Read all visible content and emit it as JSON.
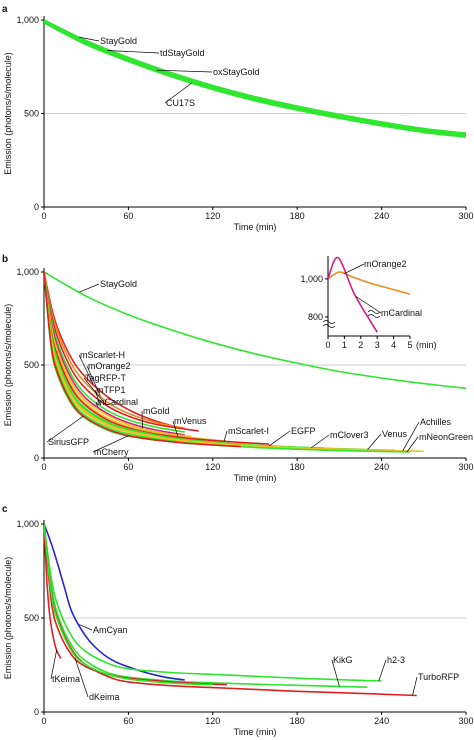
{
  "chart_data": [
    {
      "panel": "a",
      "type": "line",
      "xlabel": "Time (min)",
      "ylabel": "Emission (photons/s/molecule)",
      "xlim": [
        0,
        300
      ],
      "ylim": [
        0,
        1000
      ],
      "xticks": [
        0,
        60,
        120,
        180,
        240,
        300
      ],
      "yticks": [
        0,
        500,
        1000
      ],
      "ytick_labels": [
        "0",
        "500",
        "1,000"
      ],
      "gridlines_y": [
        500
      ],
      "series": [
        {
          "name": "StayGold",
          "color": "#2ee62e",
          "x": [
            0,
            30,
            60,
            90,
            120,
            150,
            180,
            210,
            240,
            270,
            300
          ],
          "y": [
            1000,
            890,
            800,
            720,
            650,
            590,
            540,
            495,
            455,
            420,
            395
          ]
        },
        {
          "name": "tdStayGold",
          "color": "#2ee62e",
          "x": [
            0,
            30,
            60,
            90,
            120,
            150,
            180,
            210,
            240,
            270,
            300
          ],
          "y": [
            995,
            882,
            792,
            712,
            642,
            582,
            532,
            488,
            448,
            413,
            388
          ]
        },
        {
          "name": "oxStayGold",
          "color": "#2ee62e",
          "x": [
            0,
            30,
            60,
            90,
            120,
            150,
            180,
            210,
            240,
            270,
            300
          ],
          "y": [
            990,
            875,
            785,
            705,
            635,
            575,
            525,
            481,
            441,
            406,
            381
          ]
        },
        {
          "name": "CU17S",
          "color": "#2ee62e",
          "x": [
            0,
            30,
            60,
            90,
            120,
            150,
            180,
            210,
            240,
            270,
            300
          ],
          "y": [
            985,
            868,
            778,
            698,
            628,
            568,
            518,
            474,
            434,
            399,
            374
          ]
        }
      ]
    },
    {
      "panel": "b",
      "type": "line",
      "xlabel": "Time (min)",
      "ylabel": "Emission (photons/s/molecule)",
      "xlim": [
        0,
        300
      ],
      "ylim": [
        0,
        1000
      ],
      "xticks": [
        0,
        60,
        120,
        180,
        240,
        300
      ],
      "yticks": [
        0,
        500,
        1000
      ],
      "ytick_labels": [
        "0",
        "500",
        "1,000"
      ],
      "gridlines_y": [
        500
      ],
      "series": [
        {
          "name": "StayGold",
          "color": "#2ee62e",
          "x": [
            0,
            30,
            60,
            90,
            120,
            150,
            180,
            210,
            240,
            270,
            300
          ],
          "y": [
            1000,
            870,
            770,
            690,
            620,
            560,
            510,
            465,
            430,
            400,
            375
          ]
        },
        {
          "name": "mScarlet-H",
          "color": "#e02020",
          "x": [
            0,
            5,
            10,
            20,
            30,
            45,
            60,
            75,
            90
          ],
          "y": [
            1000,
            820,
            690,
            530,
            430,
            330,
            260,
            210,
            175
          ]
        },
        {
          "name": "mOrange2",
          "color": "#f08a1e",
          "x": [
            0,
            5,
            10,
            20,
            30,
            45,
            60,
            80,
            100
          ],
          "y": [
            1000,
            800,
            670,
            500,
            400,
            300,
            240,
            190,
            160
          ]
        },
        {
          "name": "TagRFP-T",
          "color": "#e02020",
          "x": [
            0,
            5,
            10,
            20,
            30,
            45,
            60,
            80,
            110
          ],
          "y": [
            1000,
            780,
            640,
            470,
            370,
            280,
            225,
            180,
            145
          ]
        },
        {
          "name": "mTFP1",
          "color": "#2ee62e",
          "x": [
            0,
            5,
            10,
            20,
            30,
            45,
            60,
            80,
            100
          ],
          "y": [
            1000,
            760,
            610,
            440,
            340,
            255,
            205,
            165,
            140
          ]
        },
        {
          "name": "mCardinal",
          "color": "#d81b8a",
          "x": [
            0,
            5,
            10,
            20,
            30,
            45,
            60,
            80,
            100
          ],
          "y": [
            1000,
            740,
            590,
            420,
            320,
            240,
            190,
            150,
            125
          ]
        },
        {
          "name": "mGold",
          "color": "#f0c020",
          "x": [
            0,
            5,
            10,
            20,
            30,
            45,
            60,
            80,
            105
          ],
          "y": [
            1000,
            720,
            570,
            400,
            305,
            230,
            180,
            140,
            115
          ]
        },
        {
          "name": "mVenus",
          "color": "#f0c020",
          "x": [
            0,
            5,
            10,
            20,
            30,
            45,
            60,
            80,
            105,
            130
          ],
          "y": [
            1000,
            700,
            550,
            380,
            290,
            215,
            170,
            135,
            110,
            90
          ]
        },
        {
          "name": "mScarlet-I",
          "color": "#e02020",
          "x": [
            0,
            5,
            10,
            20,
            30,
            45,
            60,
            80,
            105,
            130,
            160
          ],
          "y": [
            1000,
            690,
            540,
            370,
            280,
            205,
            162,
            128,
            104,
            88,
            75
          ]
        },
        {
          "name": "EGFP",
          "color": "#2ee62e",
          "x": [
            0,
            5,
            10,
            20,
            30,
            45,
            60,
            90,
            120,
            160,
            200
          ],
          "y": [
            1000,
            680,
            520,
            350,
            265,
            195,
            155,
            110,
            85,
            65,
            52
          ]
        },
        {
          "name": "mClover3",
          "color": "#2ee62e",
          "x": [
            0,
            5,
            10,
            20,
            30,
            45,
            60,
            90,
            120,
            160,
            200,
            230
          ],
          "y": [
            1000,
            660,
            505,
            340,
            255,
            188,
            150,
            106,
            82,
            64,
            52,
            45
          ]
        },
        {
          "name": "Venus",
          "color": "#f0c020",
          "x": [
            0,
            5,
            10,
            20,
            30,
            45,
            60,
            90,
            120,
            160,
            200,
            250
          ],
          "y": [
            1000,
            650,
            495,
            330,
            248,
            182,
            145,
            103,
            80,
            62,
            50,
            42
          ]
        },
        {
          "name": "Achilles",
          "color": "#f0c020",
          "x": [
            0,
            5,
            10,
            20,
            30,
            45,
            60,
            90,
            120,
            160,
            200,
            240,
            270
          ],
          "y": [
            1000,
            640,
            485,
            322,
            240,
            176,
            140,
            99,
            77,
            59,
            47,
            40,
            36
          ]
        },
        {
          "name": "mNeonGreen",
          "color": "#2ee62e",
          "x": [
            0,
            5,
            10,
            20,
            30,
            45,
            60,
            90,
            120,
            160,
            200,
            240,
            260
          ],
          "y": [
            1000,
            620,
            465,
            305,
            226,
            165,
            130,
            92,
            70,
            53,
            42,
            35,
            32
          ]
        },
        {
          "name": "SiriusGFP",
          "color": "#2ee62e",
          "x": [
            0,
            5,
            10,
            20,
            30,
            45,
            60,
            80
          ],
          "y": [
            1000,
            600,
            440,
            285,
            210,
            150,
            118,
            95
          ]
        },
        {
          "name": "mCherry",
          "color": "#e02020",
          "x": [
            0,
            5,
            10,
            20,
            30,
            45,
            60,
            80,
            100,
            120,
            140
          ],
          "y": [
            1000,
            610,
            450,
            292,
            215,
            155,
            120,
            96,
            80,
            70,
            62
          ]
        }
      ],
      "inset": {
        "xlabel": "(min)",
        "xlim": [
          0,
          5
        ],
        "xticks": [
          0,
          1,
          2,
          3,
          4,
          5
        ],
        "ytick_labels": [
          "800",
          "1,000"
        ],
        "series": [
          {
            "name": "mOrange2",
            "color": "#f08a1e",
            "x": [
              0,
              0.5,
              0.8,
              1.5,
              2.5,
              3.5,
              5
            ],
            "y": [
              1000,
              1030,
              1035,
              1010,
              980,
              955,
              920
            ]
          },
          {
            "name": "mCardinal",
            "color": "#d81b8a",
            "x": [
              0,
              0.3,
              0.5,
              0.7,
              1.0,
              1.5,
              2.0,
              2.5,
              3.0
            ],
            "y": [
              1000,
              1080,
              1110,
              1105,
              1050,
              940,
              860,
              790,
              720
            ]
          }
        ]
      }
    },
    {
      "panel": "c",
      "type": "line",
      "xlabel": "Time (min)",
      "ylabel": "Emission (photons/s/molecule)",
      "xlim": [
        0,
        300
      ],
      "ylim": [
        0,
        1000
      ],
      "xticks": [
        0,
        60,
        120,
        180,
        240,
        300
      ],
      "yticks": [
        0,
        500,
        1000
      ],
      "ytick_labels": [
        "0",
        "500",
        "1,000"
      ],
      "gridlines_y": [
        500
      ],
      "series": [
        {
          "name": "AmCyan",
          "color": "#2525c8",
          "x": [
            0,
            5,
            10,
            15,
            20,
            30,
            40,
            50,
            60,
            70,
            80,
            90,
            100
          ],
          "y": [
            1000,
            900,
            780,
            650,
            530,
            400,
            320,
            270,
            240,
            215,
            195,
            180,
            170
          ]
        },
        {
          "name": "h2-3",
          "color": "#2ee62e",
          "x": [
            0,
            5,
            10,
            20,
            30,
            45,
            60,
            90,
            120,
            150,
            180,
            210,
            240
          ],
          "y": [
            1000,
            720,
            560,
            400,
            320,
            260,
            230,
            210,
            200,
            190,
            180,
            172,
            165
          ]
        },
        {
          "name": "KikG",
          "color": "#2ee62e",
          "x": [
            0,
            5,
            10,
            20,
            30,
            45,
            60,
            90,
            120,
            150,
            180,
            210,
            230
          ],
          "y": [
            1000,
            680,
            510,
            350,
            270,
            210,
            185,
            165,
            155,
            148,
            142,
            136,
            132
          ]
        },
        {
          "name": "TurboRFP",
          "color": "#e02020",
          "x": [
            0,
            5,
            10,
            20,
            30,
            45,
            60,
            90,
            120,
            150,
            180,
            220,
            265
          ],
          "y": [
            1000,
            650,
            490,
            330,
            250,
            190,
            160,
            140,
            130,
            120,
            110,
            100,
            88
          ]
        },
        {
          "name": "dKeima",
          "color": "#e02020",
          "x": [
            0,
            5,
            10,
            20,
            30,
            45,
            60,
            90,
            120,
            130
          ],
          "y": [
            1000,
            600,
            440,
            300,
            240,
            200,
            180,
            160,
            148,
            145
          ]
        },
        {
          "name": "tKeima",
          "color": "#e02020",
          "x": [
            0,
            2,
            4,
            6,
            8,
            10,
            12
          ],
          "y": [
            1000,
            700,
            520,
            420,
            350,
            310,
            285
          ]
        },
        {
          "name": "",
          "color": "#2ee62e",
          "x": [
            0,
            5,
            10,
            20,
            30,
            45,
            60,
            80,
            100,
            120
          ],
          "y": [
            1000,
            640,
            480,
            320,
            250,
            200,
            175,
            160,
            150,
            145
          ]
        }
      ]
    }
  ]
}
